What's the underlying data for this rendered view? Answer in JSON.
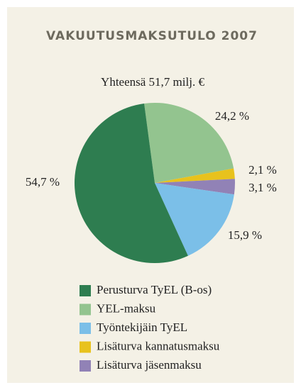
{
  "chart_data": {
    "type": "pie",
    "title": "VAKUUTUSMAKSUTULO 2007",
    "subtitle": "Yhteensä 51,7 milj. €",
    "categories": [
      "Perusturva TyEL (B-os)",
      "YEL-maksu",
      "Työntekijäin TyEL",
      "Lisäturva kannatusmaksu",
      "Lisäturva jäsenmaksu"
    ],
    "values": [
      54.7,
      24.2,
      15.9,
      2.1,
      3.1
    ],
    "value_labels": [
      "54,7 %",
      "24,2 %",
      "15,9 %",
      "2,1 %",
      "3,1 %"
    ],
    "colors": [
      "#2e7d50",
      "#93c48f",
      "#7bbfe8",
      "#e8c21d",
      "#9182b6"
    ]
  }
}
